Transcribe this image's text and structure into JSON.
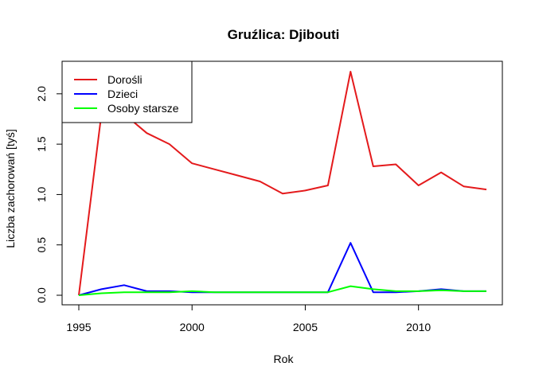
{
  "chart_data": {
    "type": "line",
    "title": "Gruźlica: Djibouti",
    "xlabel": "Rok",
    "ylabel": "Liczba zachorowań [tyś]",
    "xlim": [
      1995,
      2013
    ],
    "ylim": [
      0,
      2.22
    ],
    "x_ticks": [
      1995,
      2000,
      2005,
      2010
    ],
    "x_tick_labels": [
      "1995",
      "2000",
      "2005",
      "2010"
    ],
    "y_ticks": [
      0,
      0.5,
      1,
      1.5,
      2
    ],
    "y_tick_labels": [
      "0.0",
      "0.5",
      "1.0",
      "1.5",
      "2.0"
    ],
    "grid": false,
    "legend_position": "top-left",
    "x": [
      1995,
      1996,
      1997,
      1998,
      1999,
      2000,
      2001,
      2002,
      2003,
      2004,
      2005,
      2006,
      2007,
      2008,
      2009,
      2010,
      2011,
      2012,
      2013
    ],
    "series": [
      {
        "name": "Dorośli",
        "color": "#e41a1c",
        "values": [
          0.0,
          1.8,
          1.8,
          1.61,
          1.5,
          1.31,
          1.25,
          1.19,
          1.13,
          1.01,
          1.04,
          1.09,
          2.22,
          1.28,
          1.3,
          1.09,
          1.22,
          1.08,
          1.05
        ]
      },
      {
        "name": "Dzieci",
        "color": "#0000ff",
        "values": [
          0.0,
          0.06,
          0.1,
          0.04,
          0.04,
          0.03,
          0.03,
          0.03,
          0.03,
          0.03,
          0.03,
          0.03,
          0.52,
          0.03,
          0.03,
          0.04,
          0.06,
          0.04,
          0.04
        ]
      },
      {
        "name": "Osoby starsze",
        "color": "#00ff00",
        "values": [
          0.0,
          0.02,
          0.03,
          0.03,
          0.03,
          0.04,
          0.03,
          0.03,
          0.03,
          0.03,
          0.03,
          0.03,
          0.09,
          0.06,
          0.04,
          0.04,
          0.05,
          0.04,
          0.04
        ]
      }
    ]
  }
}
